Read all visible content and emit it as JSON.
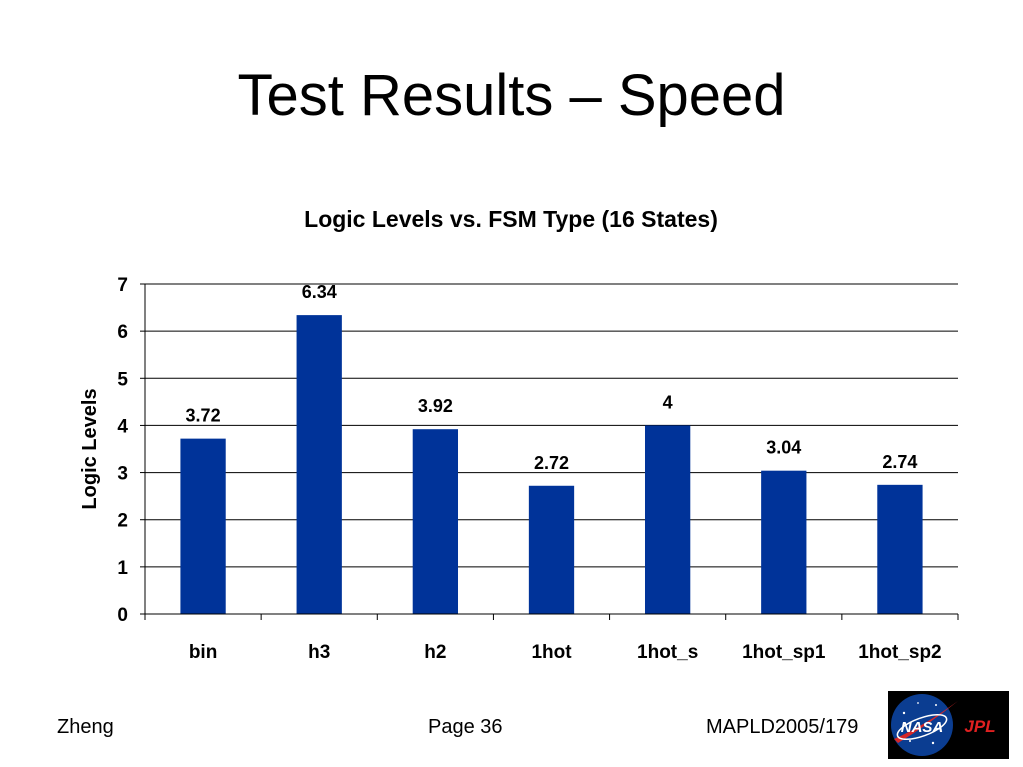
{
  "slide": {
    "title": "Test Results – Speed"
  },
  "chart_data": {
    "type": "bar",
    "title": "Logic Levels vs. FSM Type (16 States)",
    "xlabel": "",
    "ylabel": "Logic Levels",
    "categories": [
      "bin",
      "h3",
      "h2",
      "1hot",
      "1hot_s",
      "1hot_sp1",
      "1hot_sp2"
    ],
    "values": [
      3.72,
      6.34,
      3.92,
      2.72,
      4,
      3.04,
      2.74
    ],
    "data_labels": [
      "3.72",
      "6.34",
      "3.92",
      "2.72",
      "4",
      "3.04",
      "2.74"
    ],
    "yticks": [
      0,
      1,
      2,
      3,
      4,
      5,
      6,
      7
    ],
    "ylim": [
      0,
      7
    ],
    "grid": true,
    "legend": "none",
    "bar_color": "#003399"
  },
  "footer": {
    "author": "Zheng",
    "page": "Page 36",
    "conference": "MAPLD2005/179"
  },
  "logos": {
    "nasa_text": "NASA",
    "jpl_text": "JPL",
    "nasa_icon": "nasa-meatball-icon",
    "jpl_icon": "jpl-logo-icon"
  }
}
